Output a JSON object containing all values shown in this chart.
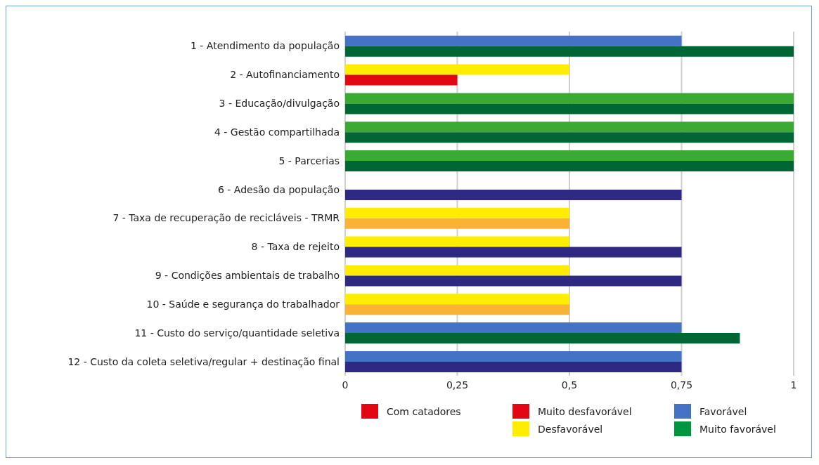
{
  "chart_data": {
    "type": "bar",
    "orientation": "horizontal",
    "categories": [
      "1 - Atendimento da população",
      "2 - Autofinanciamento",
      "3 - Educação/divulgação",
      "4 - Gestão compartilhada",
      "5 - Parcerias",
      "6 - Adesão da população",
      "7 - Taxa de recuperação de recicláveis - TRMR",
      "8 - Taxa de rejeito",
      "9 - Condições ambientais de trabalho",
      "10 - Saúde e segurança do trabalhador",
      "11 - Custo do serviço/quantidade seletiva",
      "12 - Custo da coleta seletiva/regular + destinação final"
    ],
    "series": [
      {
        "values": [
          0.75,
          0.5,
          1,
          1,
          1,
          null,
          0.5,
          0.5,
          0.5,
          0.5,
          0.75,
          0.75
        ],
        "colors": [
          "#4472c4",
          "#ffed00",
          "#3aaa35",
          "#3aaa35",
          "#3aaa35",
          "#4472c4",
          "#ffed00",
          "#ffed00",
          "#ffed00",
          "#ffed00",
          "#4472c4",
          "#4472c4"
        ]
      },
      {
        "values": [
          1,
          0.25,
          1,
          1,
          1,
          0.75,
          0.5,
          0.75,
          0.75,
          0.5,
          0.88,
          0.75
        ],
        "colors": [
          "#006633",
          "#e30613",
          "#006633",
          "#006633",
          "#006633",
          "#2e2a84",
          "#f9b233",
          "#2e2a84",
          "#2e2a84",
          "#f9b233",
          "#006633",
          "#2e2a84"
        ]
      },
      {
        "name": "Com catadores",
        "color": "#e30613",
        "values": [
          null,
          null,
          null,
          null,
          null,
          null,
          null,
          null,
          null,
          null,
          null,
          null
        ]
      },
      {
        "name": "Muito desfavorável",
        "color": "#e30613",
        "values": [
          null,
          null,
          null,
          null,
          null,
          null,
          null,
          null,
          null,
          null,
          null,
          null
        ]
      },
      {
        "name": "Favorável",
        "color": "#4472c4",
        "values": [
          null,
          null,
          null,
          null,
          null,
          null,
          null,
          null,
          null,
          null,
          null,
          null
        ]
      },
      {
        "name": "Desfavorável",
        "color": "#ffed00",
        "values": [
          null,
          null,
          null,
          null,
          null,
          null,
          null,
          null,
          null,
          null,
          null,
          null
        ]
      },
      {
        "name": "Muito favorável",
        "color": "#009640",
        "values": [
          null,
          null,
          null,
          null,
          null,
          null,
          null,
          null,
          null,
          null,
          null,
          null
        ]
      }
    ],
    "xlim": [
      0,
      1
    ],
    "xticks": [
      0,
      {
        "value": 0.25,
        "label": "0,25"
      },
      {
        "value": 0.5,
        "label": "0,5"
      },
      {
        "value": 0.75,
        "label": "0,75"
      },
      1
    ],
    "grid": "x",
    "legend": "bottom"
  }
}
